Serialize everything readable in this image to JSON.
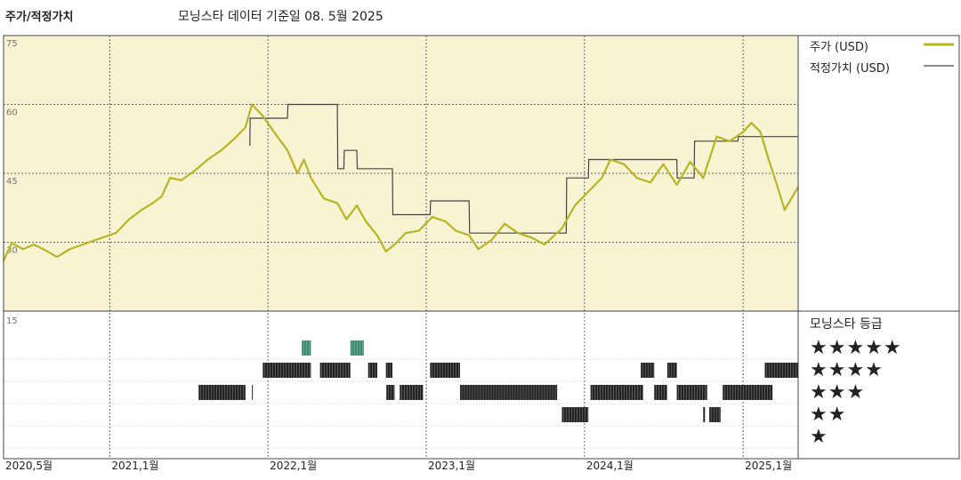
{
  "header": {
    "title": "주가/적정가치",
    "subtitle": "모닝스타 데이터 기준일 08. 5월 2025"
  },
  "legend": {
    "price_label": "주가 (USD)",
    "fair_label": "적정가치 (USD)",
    "price_color": "#b8b424",
    "fair_color": "#444444"
  },
  "rating": {
    "title": "모닝스타 등급",
    "stars": [
      "★★★★★",
      "★★★★",
      "★★★",
      "★★",
      "★"
    ],
    "colors": {
      "5": "#3a8a6e",
      "other": "#222222"
    }
  },
  "chart_data": {
    "type": "line",
    "ylim": [
      15,
      75
    ],
    "yticks": [
      15,
      30,
      45,
      60,
      75
    ],
    "ytick_labels": [
      "15",
      "30",
      "45",
      "60",
      "75"
    ],
    "xlim": [
      "2020-05-01",
      "2025-05-08"
    ],
    "xticks": [
      "2020-05-01",
      "2021-01-01",
      "2022-01-01",
      "2023-01-01",
      "2024-01-01",
      "2025-01-01"
    ],
    "xtick_labels": [
      "2020,5월",
      "2021,1월",
      "2022,1월",
      "2023,1월",
      "2024,1월",
      "2025,1월"
    ],
    "background_color": "#f7f3d3",
    "series": [
      {
        "name": "주가 (USD)",
        "points": [
          [
            "2020-05-01",
            26.0
          ],
          [
            "2020-05-20",
            29.8
          ],
          [
            "2020-06-15",
            28.5
          ],
          [
            "2020-07-10",
            29.5
          ],
          [
            "2020-08-10",
            28.0
          ],
          [
            "2020-09-01",
            26.8
          ],
          [
            "2020-10-01",
            28.5
          ],
          [
            "2020-11-15",
            30.0
          ],
          [
            "2020-12-15",
            31.0
          ],
          [
            "2021-01-15",
            32.0
          ],
          [
            "2021-02-15",
            35.0
          ],
          [
            "2021-03-15",
            37.0
          ],
          [
            "2021-04-10",
            38.5
          ],
          [
            "2021-05-01",
            40.0
          ],
          [
            "2021-05-20",
            44.0
          ],
          [
            "2021-06-15",
            43.5
          ],
          [
            "2021-07-15",
            45.5
          ],
          [
            "2021-08-15",
            48.0
          ],
          [
            "2021-09-15",
            50.0
          ],
          [
            "2021-10-15",
            52.5
          ],
          [
            "2021-11-10",
            55.0
          ],
          [
            "2021-11-25",
            60.0
          ],
          [
            "2021-12-20",
            57.5
          ],
          [
            "2022-01-15",
            54.0
          ],
          [
            "2022-02-15",
            50.0
          ],
          [
            "2022-03-10",
            45.0
          ],
          [
            "2022-03-25",
            48.0
          ],
          [
            "2022-04-10",
            44.0
          ],
          [
            "2022-05-10",
            39.5
          ],
          [
            "2022-06-10",
            38.5
          ],
          [
            "2022-07-01",
            35.0
          ],
          [
            "2022-07-25",
            38.0
          ],
          [
            "2022-08-15",
            34.5
          ],
          [
            "2022-09-10",
            31.5
          ],
          [
            "2022-09-30",
            28.0
          ],
          [
            "2022-10-20",
            29.5
          ],
          [
            "2022-11-15",
            32.0
          ],
          [
            "2022-12-15",
            32.5
          ],
          [
            "2023-01-15",
            35.5
          ],
          [
            "2023-02-15",
            34.5
          ],
          [
            "2023-03-10",
            32.5
          ],
          [
            "2023-04-10",
            31.5
          ],
          [
            "2023-05-01",
            28.5
          ],
          [
            "2023-06-01",
            30.5
          ],
          [
            "2023-07-01",
            34.0
          ],
          [
            "2023-08-01",
            32.0
          ],
          [
            "2023-09-01",
            31.0
          ],
          [
            "2023-10-01",
            29.5
          ],
          [
            "2023-11-10",
            33.0
          ],
          [
            "2023-12-10",
            38.0
          ],
          [
            "2024-01-10",
            41.0
          ],
          [
            "2024-02-10",
            44.0
          ],
          [
            "2024-03-01",
            48.0
          ],
          [
            "2024-04-01",
            47.0
          ],
          [
            "2024-05-01",
            44.0
          ],
          [
            "2024-06-01",
            43.0
          ],
          [
            "2024-07-01",
            47.0
          ],
          [
            "2024-08-01",
            42.5
          ],
          [
            "2024-09-01",
            47.5
          ],
          [
            "2024-10-01",
            44.0
          ],
          [
            "2024-11-01",
            53.0
          ],
          [
            "2024-12-01",
            52.0
          ],
          [
            "2025-01-01",
            54.0
          ],
          [
            "2025-01-20",
            56.0
          ],
          [
            "2025-02-10",
            54.0
          ],
          [
            "2025-03-01",
            48.0
          ],
          [
            "2025-03-20",
            42.5
          ],
          [
            "2025-04-07",
            37.0
          ],
          [
            "2025-04-25",
            40.0
          ],
          [
            "2025-05-08",
            42.0
          ]
        ]
      },
      {
        "name": "적정가치 (USD)",
        "step": true,
        "points": [
          [
            "2021-11-20",
            51.0
          ],
          [
            "2021-11-21",
            57.0
          ],
          [
            "2022-02-15",
            57.0
          ],
          [
            "2022-02-16",
            60.0
          ],
          [
            "2022-06-10",
            60.0
          ],
          [
            "2022-06-11",
            46.0
          ],
          [
            "2022-06-25",
            46.0
          ],
          [
            "2022-06-26",
            50.0
          ],
          [
            "2022-07-25",
            50.0
          ],
          [
            "2022-07-26",
            46.0
          ],
          [
            "2022-10-15",
            46.0
          ],
          [
            "2022-10-16",
            36.0
          ],
          [
            "2023-01-10",
            36.0
          ],
          [
            "2023-01-11",
            39.0
          ],
          [
            "2023-04-10",
            39.0
          ],
          [
            "2023-04-11",
            32.0
          ],
          [
            "2023-11-20",
            32.0
          ],
          [
            "2023-11-21",
            44.0
          ],
          [
            "2024-01-10",
            44.0
          ],
          [
            "2024-01-11",
            48.0
          ],
          [
            "2024-08-01",
            48.0
          ],
          [
            "2024-08-02",
            44.0
          ],
          [
            "2024-09-10",
            44.0
          ],
          [
            "2024-09-11",
            52.0
          ],
          [
            "2024-12-20",
            52.0
          ],
          [
            "2024-12-21",
            53.0
          ],
          [
            "2025-05-08",
            53.0
          ]
        ]
      }
    ],
    "ratings": [
      {
        "stars": 3,
        "start": "2021-07-25",
        "end": "2021-11-10"
      },
      {
        "stars": 3,
        "start": "2021-11-25",
        "end": "2021-11-27"
      },
      {
        "stars": 4,
        "start": "2021-12-20",
        "end": "2022-04-10"
      },
      {
        "stars": 5,
        "start": "2022-03-20",
        "end": "2022-04-10"
      },
      {
        "stars": 4,
        "start": "2022-05-01",
        "end": "2022-07-10"
      },
      {
        "stars": 5,
        "start": "2022-07-10",
        "end": "2022-08-10"
      },
      {
        "stars": 4,
        "start": "2022-08-20",
        "end": "2022-09-10"
      },
      {
        "stars": 4,
        "start": "2022-09-30",
        "end": "2022-10-15"
      },
      {
        "stars": 3,
        "start": "2022-10-01",
        "end": "2022-10-20"
      },
      {
        "stars": 3,
        "start": "2022-11-01",
        "end": "2022-12-25"
      },
      {
        "stars": 4,
        "start": "2023-01-10",
        "end": "2023-03-20"
      },
      {
        "stars": 3,
        "start": "2023-03-20",
        "end": "2023-10-30"
      },
      {
        "stars": 2,
        "start": "2023-11-10",
        "end": "2024-01-10"
      },
      {
        "stars": 3,
        "start": "2024-01-15",
        "end": "2024-05-15"
      },
      {
        "stars": 4,
        "start": "2024-05-10",
        "end": "2024-06-10"
      },
      {
        "stars": 3,
        "start": "2024-06-10",
        "end": "2024-07-10"
      },
      {
        "stars": 4,
        "start": "2024-07-10",
        "end": "2024-08-01"
      },
      {
        "stars": 3,
        "start": "2024-08-01",
        "end": "2024-10-10"
      },
      {
        "stars": 2,
        "start": "2024-10-01",
        "end": "2024-10-05"
      },
      {
        "stars": 2,
        "start": "2024-10-15",
        "end": "2024-11-10"
      },
      {
        "stars": 3,
        "start": "2024-11-15",
        "end": "2025-03-10"
      },
      {
        "stars": 4,
        "start": "2025-02-20",
        "end": "2025-05-08"
      }
    ]
  }
}
